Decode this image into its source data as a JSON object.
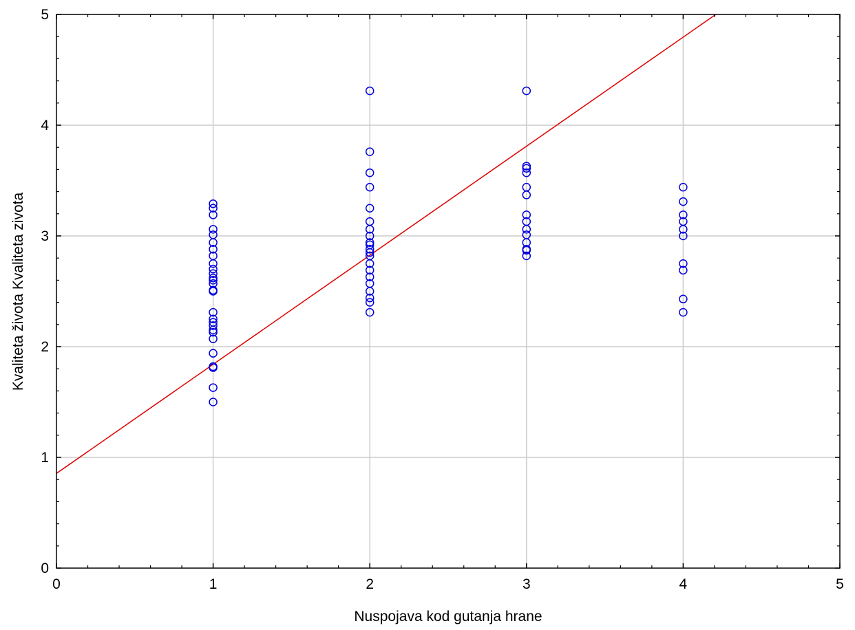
{
  "chart_data": {
    "type": "scatter",
    "title": "",
    "xlabel": "Nuspojava kod gutanja hrane",
    "ylabel": "Kvaliteta života Kvaliteta zivota",
    "xlim": [
      0,
      5
    ],
    "ylim": [
      0,
      5
    ],
    "x_ticks": [
      "0",
      "1",
      "2",
      "3",
      "4",
      "5"
    ],
    "y_ticks": [
      "0",
      "1",
      "2",
      "3",
      "4",
      "5"
    ],
    "grid": true,
    "colors": {
      "points": "#0000dd",
      "fit_line": "#dd0000",
      "grid": "#cccccc",
      "axes": "#000000"
    },
    "series": [
      {
        "points": [
          [
            1,
            3.29
          ],
          [
            1,
            3.25
          ],
          [
            1,
            3.19
          ],
          [
            1,
            3.06
          ],
          [
            1,
            3.01
          ],
          [
            1,
            2.94
          ],
          [
            1,
            2.88
          ],
          [
            1,
            2.82
          ],
          [
            1,
            2.75
          ],
          [
            1,
            2.7
          ],
          [
            1,
            2.66
          ],
          [
            1,
            2.62
          ],
          [
            1,
            2.6
          ],
          [
            1,
            2.57
          ],
          [
            1,
            2.51
          ],
          [
            1,
            2.5
          ],
          [
            1,
            2.31
          ],
          [
            1,
            2.25
          ],
          [
            1,
            2.22
          ],
          [
            1,
            2.19
          ],
          [
            1,
            2.15
          ],
          [
            1,
            2.13
          ],
          [
            1,
            2.07
          ],
          [
            1,
            1.94
          ],
          [
            1,
            1.82
          ],
          [
            1,
            1.81
          ],
          [
            1,
            1.63
          ],
          [
            1,
            1.5
          ],
          [
            2,
            4.31
          ],
          [
            2,
            3.76
          ],
          [
            2,
            3.57
          ],
          [
            2,
            3.44
          ],
          [
            2,
            3.25
          ],
          [
            2,
            3.13
          ],
          [
            2,
            3.06
          ],
          [
            2,
            3.0
          ],
          [
            2,
            2.94
          ],
          [
            2,
            2.92
          ],
          [
            2,
            2.88
          ],
          [
            2,
            2.85
          ],
          [
            2,
            2.82
          ],
          [
            2,
            2.75
          ],
          [
            2,
            2.69
          ],
          [
            2,
            2.63
          ],
          [
            2,
            2.57
          ],
          [
            2,
            2.5
          ],
          [
            2,
            2.44
          ],
          [
            2,
            2.4
          ],
          [
            2,
            2.31
          ],
          [
            3,
            4.31
          ],
          [
            3,
            3.63
          ],
          [
            3,
            3.61
          ],
          [
            3,
            3.57
          ],
          [
            3,
            3.44
          ],
          [
            3,
            3.37
          ],
          [
            3,
            3.19
          ],
          [
            3,
            3.13
          ],
          [
            3,
            3.06
          ],
          [
            3,
            3.01
          ],
          [
            3,
            2.94
          ],
          [
            3,
            2.88
          ],
          [
            3,
            2.87
          ],
          [
            3,
            2.82
          ],
          [
            4,
            3.44
          ],
          [
            4,
            3.31
          ],
          [
            4,
            3.19
          ],
          [
            4,
            3.13
          ],
          [
            4,
            3.06
          ],
          [
            4,
            3.0
          ],
          [
            4,
            2.75
          ],
          [
            4,
            2.69
          ],
          [
            4,
            2.43
          ],
          [
            4,
            2.31
          ]
        ]
      }
    ],
    "fit_line": {
      "intercept": 0.855,
      "slope": 0.985
    }
  }
}
